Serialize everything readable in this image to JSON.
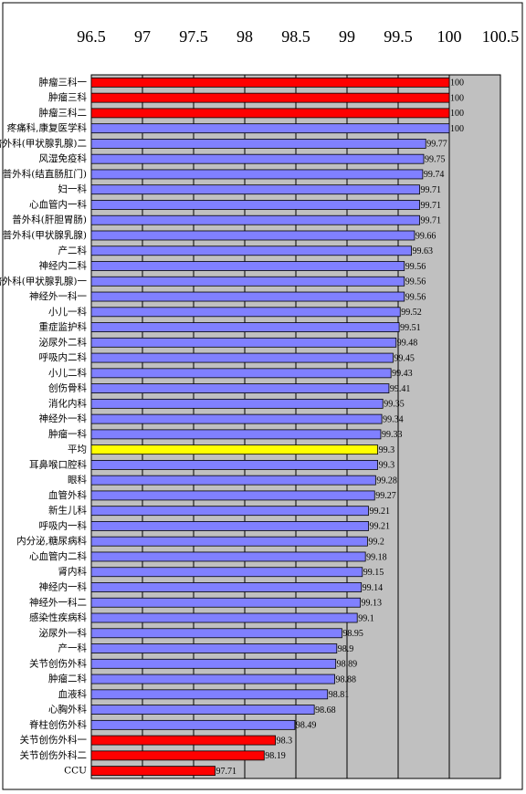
{
  "chart_data": {
    "type": "bar",
    "orientation": "horizontal",
    "categories": [
      "肿瘤三科一",
      "肿瘤三科",
      "肿瘤三科二",
      "疼痛科,康复医学科",
      "普外科(甲状腺乳腺)二",
      "风湿免疫科",
      "普外科(结直肠肛门)",
      "妇一科",
      "心血管内一科",
      "普外科(肝胆胃肠)",
      "普外科(甲状腺乳腺)",
      "产二科",
      "神经内二科",
      "普外科(甲状腺乳腺)一",
      "神经外一科一",
      "小儿一科",
      "重症监护科",
      "泌尿外二科",
      "呼吸内二科",
      "小儿二科",
      "创伤骨科",
      "消化内科",
      "神经外一科",
      "肿瘤一科",
      "平均",
      "耳鼻喉口腔科",
      "眼科",
      "血管外科",
      "新生儿科",
      "呼吸内一科",
      "内分泌,糖尿病科",
      "心血管内二科",
      "肾内科",
      "神经内一科",
      "神经外一科二",
      "感染性疾病科",
      "泌尿外一科",
      "产一科",
      "关节创伤外科",
      "肿瘤二科",
      "血液科",
      "心胸外科",
      "脊柱创伤外科",
      "关节创伤外科一",
      "关节创伤外科二",
      "CCU"
    ],
    "values": [
      100,
      100,
      100,
      100,
      99.77,
      99.75,
      99.74,
      99.71,
      99.71,
      99.71,
      99.66,
      99.63,
      99.56,
      99.56,
      99.56,
      99.52,
      99.51,
      99.48,
      99.45,
      99.43,
      99.41,
      99.35,
      99.34,
      99.33,
      99.3,
      99.3,
      99.28,
      99.27,
      99.21,
      99.21,
      99.2,
      99.18,
      99.15,
      99.14,
      99.13,
      99.1,
      98.95,
      98.9,
      98.89,
      98.88,
      98.81,
      98.68,
      98.49,
      98.3,
      98.19,
      97.71
    ],
    "colors": [
      "#ff0000",
      "#ff0000",
      "#ff0000",
      "#8080ff",
      "#8080ff",
      "#8080ff",
      "#8080ff",
      "#8080ff",
      "#8080ff",
      "#8080ff",
      "#8080ff",
      "#8080ff",
      "#8080ff",
      "#8080ff",
      "#8080ff",
      "#8080ff",
      "#8080ff",
      "#8080ff",
      "#8080ff",
      "#8080ff",
      "#8080ff",
      "#8080ff",
      "#8080ff",
      "#8080ff",
      "#ffff00",
      "#8080ff",
      "#8080ff",
      "#8080ff",
      "#8080ff",
      "#8080ff",
      "#8080ff",
      "#8080ff",
      "#8080ff",
      "#8080ff",
      "#8080ff",
      "#8080ff",
      "#8080ff",
      "#8080ff",
      "#8080ff",
      "#8080ff",
      "#8080ff",
      "#8080ff",
      "#8080ff",
      "#ff0000",
      "#ff0000",
      "#ff0000"
    ],
    "xlim": [
      96.5,
      100.5
    ],
    "xticks": [
      96.5,
      97,
      97.5,
      98,
      98.5,
      99,
      99.5,
      100,
      100.5
    ],
    "grid": true
  }
}
